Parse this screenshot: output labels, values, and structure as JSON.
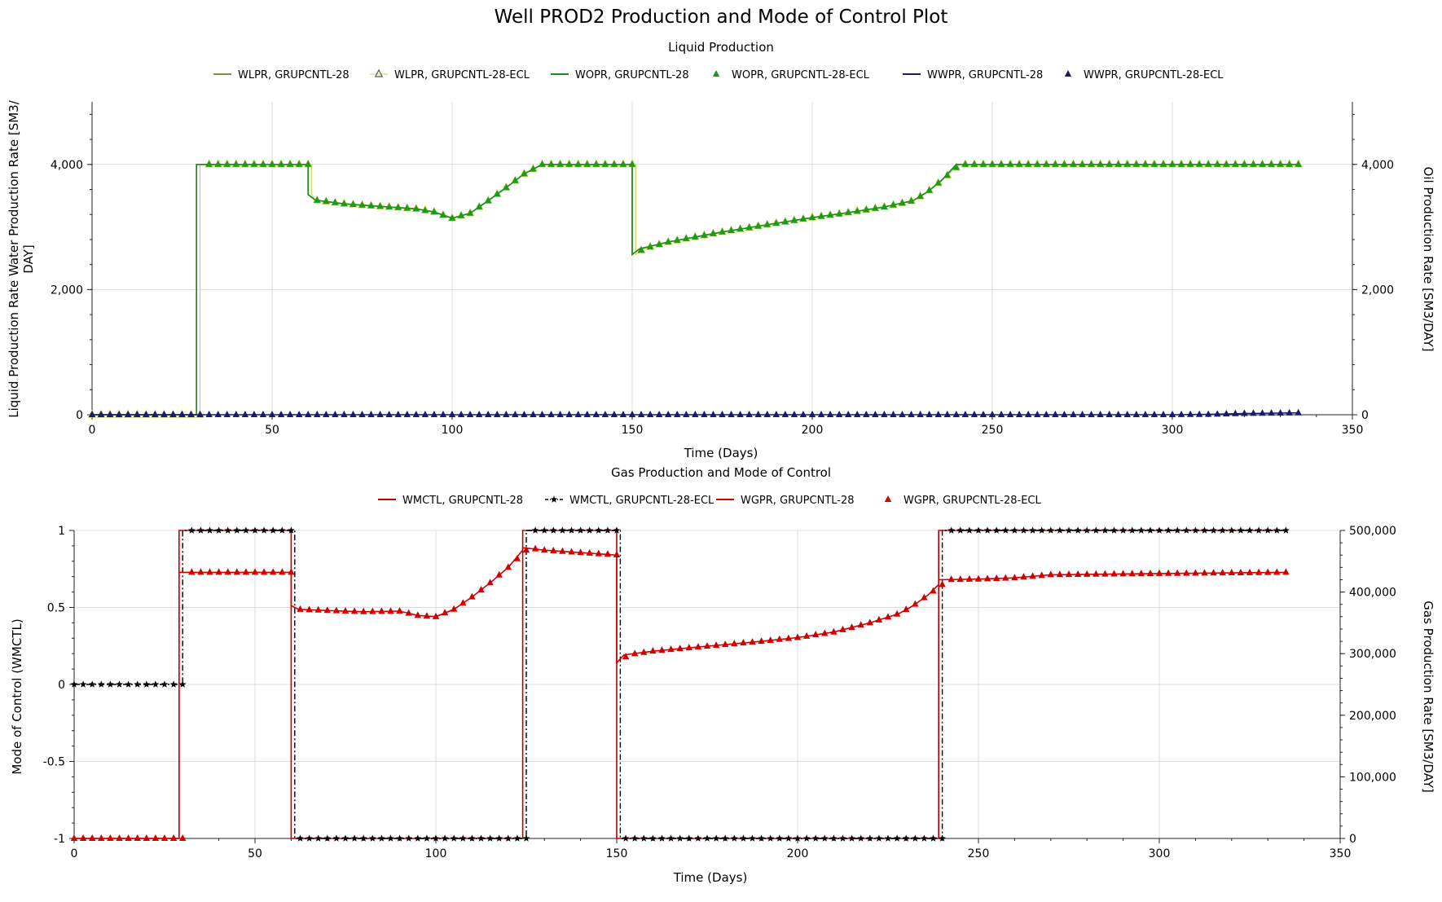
{
  "title": "Well PROD2 Production and Mode of Control Plot",
  "chart_data": [
    {
      "type": "line",
      "title": "Liquid Production",
      "xlabel": "Time (Days)",
      "ylabel_left": "Liquid Production Rate Water Production Rate [SM3/DAY]",
      "ylabel_right": "Oil Production Rate [SM3/DAY]",
      "xlim": [
        0,
        350
      ],
      "xticks": [
        0,
        50,
        100,
        150,
        200,
        250,
        300,
        350
      ],
      "x_tick_labels": [
        "0",
        "50",
        "100",
        "150",
        "200",
        "250",
        "300",
        "350"
      ],
      "ylim_left": [
        0,
        5000
      ],
      "yticks_left": [
        0,
        2000,
        4000
      ],
      "y_tick_labels_left": [
        "0",
        "2,000",
        "4,000"
      ],
      "ylim_right": [
        0,
        5000
      ],
      "yticks_right": [
        0,
        2000,
        4000
      ],
      "y_tick_labels_right": [
        "0",
        "2,000",
        "4,000"
      ],
      "grid": true,
      "legend_position": "top",
      "series": [
        {
          "name": "WLPR, GRUPCNTL-28",
          "axis": "left",
          "style": "line",
          "color": "#8a8a3c",
          "x": [
            0,
            29,
            29,
            60,
            60,
            62,
            70,
            80,
            90,
            95,
            100,
            105,
            110,
            115,
            120,
            125,
            130,
            140,
            150,
            150,
            152,
            160,
            175,
            190,
            200,
            210,
            220,
            228,
            232,
            236,
            240,
            250,
            280,
            310,
            335
          ],
          "y": [
            0,
            0,
            4000,
            4000,
            3520,
            3430,
            3370,
            3330,
            3290,
            3240,
            3140,
            3220,
            3420,
            3630,
            3850,
            4000,
            4000,
            4000,
            4000,
            2560,
            2650,
            2760,
            2920,
            3060,
            3150,
            3230,
            3320,
            3420,
            3560,
            3750,
            4000,
            4000,
            4000,
            4000,
            4000
          ]
        },
        {
          "name": "WLPR, GRUPCNTL-28-ECL",
          "axis": "left",
          "style": "marker-open-triangle",
          "color": "#c8d24a",
          "x": [
            0,
            30,
            30,
            61,
            61,
            62,
            70,
            80,
            90,
            95,
            100,
            105,
            110,
            115,
            120,
            125,
            130,
            140,
            151,
            151,
            153,
            160,
            175,
            190,
            200,
            210,
            220,
            228,
            232,
            236,
            241,
            250,
            280,
            310,
            335
          ],
          "y": [
            0,
            0,
            4000,
            4000,
            3520,
            3430,
            3370,
            3330,
            3290,
            3240,
            3140,
            3220,
            3420,
            3630,
            3850,
            4000,
            4000,
            4000,
            4000,
            2560,
            2650,
            2760,
            2920,
            3060,
            3150,
            3230,
            3320,
            3420,
            3560,
            3750,
            4000,
            4000,
            4000,
            4000,
            4000
          ]
        },
        {
          "name": "WOPR, GRUPCNTL-28",
          "axis": "right",
          "style": "line",
          "color": "#1a8c1a",
          "x": [
            0,
            29,
            29,
            60,
            60,
            62,
            70,
            80,
            90,
            95,
            100,
            105,
            110,
            115,
            120,
            125,
            130,
            140,
            150,
            150,
            152,
            160,
            175,
            190,
            200,
            210,
            220,
            228,
            232,
            236,
            240,
            250,
            280,
            310,
            335
          ],
          "y": [
            0,
            0,
            4000,
            4000,
            3520,
            3430,
            3370,
            3330,
            3290,
            3240,
            3140,
            3220,
            3420,
            3630,
            3850,
            4000,
            4000,
            4000,
            4000,
            2560,
            2650,
            2760,
            2920,
            3060,
            3150,
            3230,
            3320,
            3420,
            3560,
            3750,
            4000,
            4000,
            4000,
            4000,
            4000
          ]
        },
        {
          "name": "WOPR, GRUPCNTL-28-ECL",
          "axis": "right",
          "style": "marker-filled-triangle",
          "color": "#1a9c1a",
          "x": [
            0,
            30,
            30,
            61,
            61,
            62,
            70,
            80,
            90,
            95,
            100,
            105,
            110,
            115,
            120,
            125,
            130,
            140,
            151,
            151,
            153,
            160,
            175,
            190,
            200,
            210,
            220,
            228,
            232,
            236,
            241,
            250,
            280,
            310,
            335
          ],
          "y": [
            0,
            0,
            4000,
            4000,
            3520,
            3430,
            3370,
            3330,
            3290,
            3240,
            3140,
            3220,
            3420,
            3630,
            3850,
            4000,
            4000,
            4000,
            4000,
            2560,
            2650,
            2760,
            2920,
            3060,
            3150,
            3230,
            3320,
            3420,
            3560,
            3750,
            4000,
            4000,
            4000,
            4000,
            4000
          ]
        },
        {
          "name": "WWPR, GRUPCNTL-28",
          "axis": "left",
          "style": "line",
          "color": "#1a1a6e",
          "x": [
            0,
            300,
            310,
            320,
            335
          ],
          "y": [
            0,
            0,
            5,
            20,
            30
          ]
        },
        {
          "name": "WWPR, GRUPCNTL-28-ECL",
          "axis": "left",
          "style": "marker-filled-triangle",
          "color": "#1a1a6e",
          "x": [
            0,
            300,
            310,
            320,
            335
          ],
          "y": [
            0,
            0,
            5,
            20,
            30
          ]
        }
      ]
    },
    {
      "type": "line",
      "title": "Gas Production and Mode of Control",
      "xlabel": "Time (Days)",
      "ylabel_left": "Mode of Control (WMCTL)",
      "ylabel_right": "Gas Production Rate [SM3/DAY]",
      "xlim": [
        0,
        350
      ],
      "xticks": [
        0,
        50,
        100,
        150,
        200,
        250,
        300,
        350
      ],
      "x_tick_labels": [
        "0",
        "50",
        "100",
        "150",
        "200",
        "250",
        "300",
        "350"
      ],
      "ylim_left": [
        -1,
        1
      ],
      "yticks_left": [
        -1,
        -0.5,
        0,
        0.5,
        1
      ],
      "y_tick_labels_left": [
        "-1",
        "-0.5",
        "0",
        "0.5",
        "1"
      ],
      "ylim_right": [
        0,
        500000
      ],
      "yticks_right": [
        0,
        100000,
        200000,
        300000,
        400000,
        500000
      ],
      "y_tick_labels_right": [
        "0",
        "100,000",
        "200,000",
        "300,000",
        "400,000",
        "500,000"
      ],
      "grid": true,
      "legend_position": "top",
      "series": [
        {
          "name": "WMCTL, GRUPCNTL-28",
          "axis": "left",
          "style": "line",
          "color": "#c00000",
          "x": [
            0,
            29,
            29,
            60,
            60,
            124,
            124,
            150,
            150,
            239,
            239,
            335
          ],
          "y": [
            -1,
            -1,
            1,
            1,
            -1,
            -1,
            1,
            1,
            -1,
            -1,
            1,
            1
          ]
        },
        {
          "name": "WMCTL, GRUPCNTL-28-ECL",
          "axis": "left",
          "style": "dashdot-star",
          "color": "#000000",
          "x": [
            0,
            30,
            30,
            61,
            61,
            125,
            125,
            151,
            151,
            240,
            240,
            335
          ],
          "y": [
            0,
            0,
            1,
            1,
            -1,
            -1,
            1,
            1,
            -1,
            -1,
            1,
            1
          ]
        },
        {
          "name": "WGPR, GRUPCNTL-28",
          "axis": "right",
          "style": "line",
          "color": "#d00000",
          "x": [
            0,
            29,
            29,
            60,
            60,
            62,
            70,
            80,
            90,
            95,
            100,
            105,
            110,
            115,
            120,
            124,
            124,
            130,
            140,
            150,
            150,
            152,
            160,
            175,
            190,
            200,
            210,
            220,
            228,
            232,
            236,
            239,
            239,
            250,
            260,
            270,
            300,
            335
          ],
          "y": [
            0,
            0,
            432000,
            432000,
            378000,
            372000,
            370000,
            368000,
            369000,
            362000,
            360000,
            372000,
            392000,
            415000,
            440000,
            468000,
            472000,
            468000,
            464000,
            460000,
            285000,
            298000,
            304000,
            312000,
            320000,
            326000,
            335000,
            350000,
            365000,
            378000,
            395000,
            412000,
            420000,
            421000,
            423000,
            428000,
            430000,
            432000
          ]
        },
        {
          "name": "WGPR, GRUPCNTL-28-ECL",
          "axis": "right",
          "style": "marker-filled-triangle",
          "color": "#d00000",
          "x": [
            0,
            30,
            30,
            61,
            61,
            62,
            70,
            80,
            90,
            95,
            100,
            105,
            110,
            115,
            120,
            125,
            125,
            130,
            140,
            151,
            151,
            153,
            160,
            175,
            190,
            200,
            210,
            220,
            228,
            232,
            236,
            240,
            240,
            250,
            260,
            270,
            300,
            335
          ],
          "y": [
            0,
            0,
            432000,
            432000,
            378000,
            372000,
            370000,
            368000,
            369000,
            362000,
            360000,
            372000,
            392000,
            415000,
            440000,
            468000,
            472000,
            468000,
            464000,
            460000,
            285000,
            298000,
            304000,
            312000,
            320000,
            326000,
            335000,
            350000,
            365000,
            378000,
            395000,
            412000,
            420000,
            421000,
            423000,
            428000,
            430000,
            432000
          ]
        }
      ]
    }
  ]
}
